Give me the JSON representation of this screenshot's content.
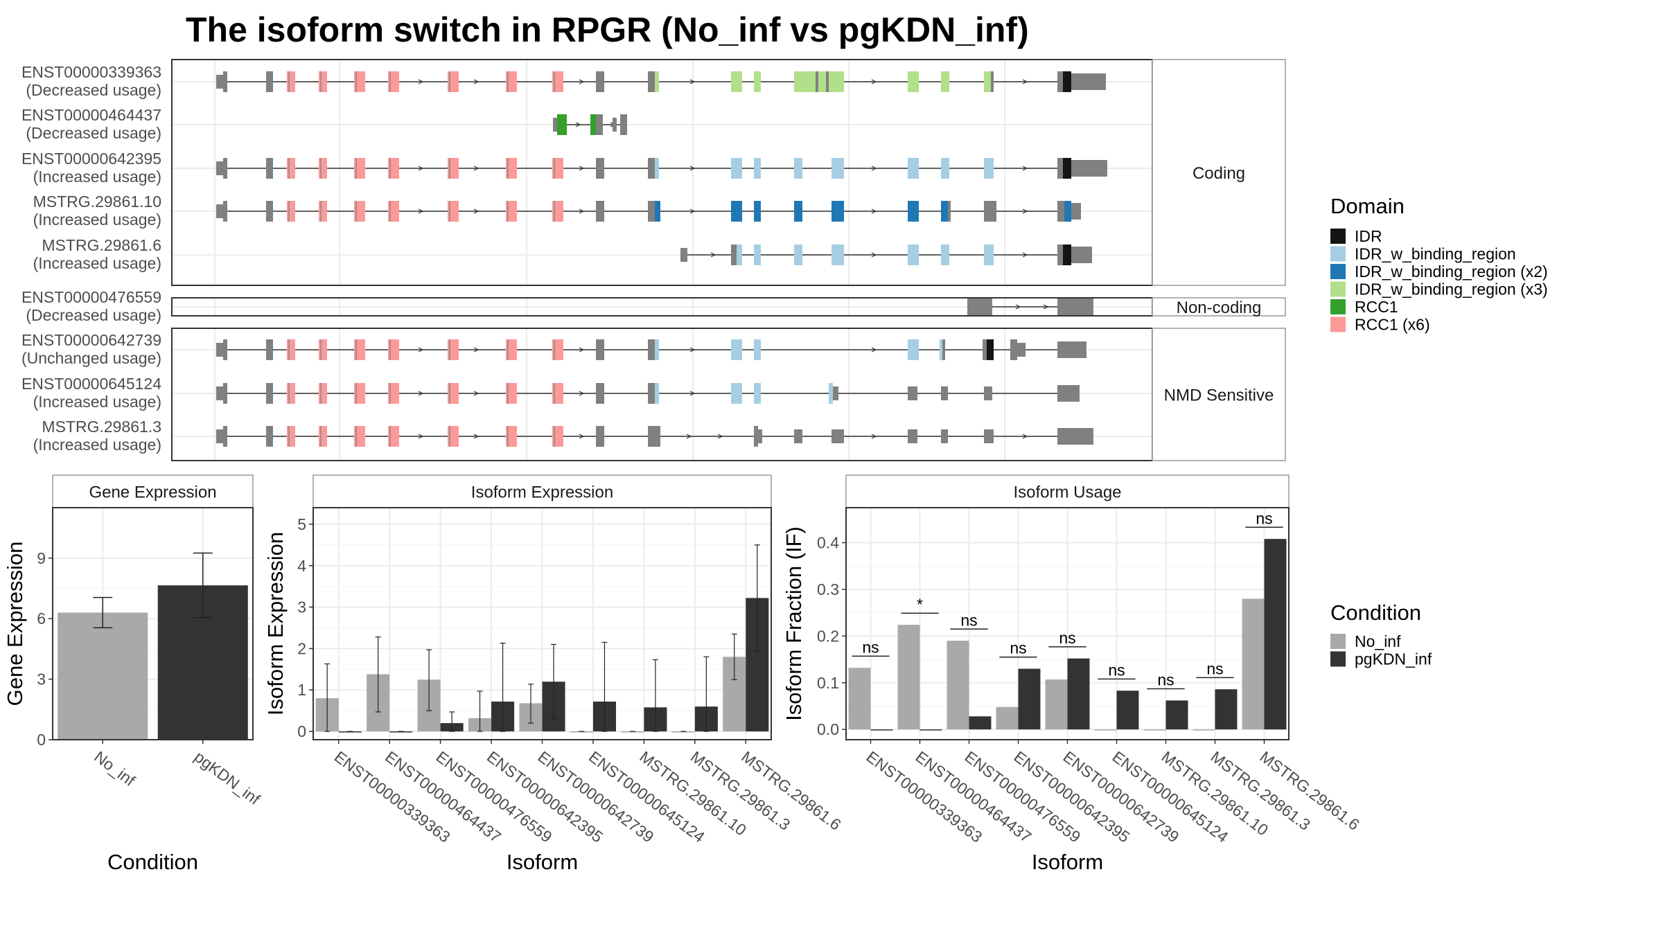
{
  "title": "The isoform switch in RPGR (No_inf vs pgKDN_inf)",
  "colors": {
    "no_inf": "#a9a9a9",
    "pgkdn_inf": "#333333",
    "exon": "#808080",
    "IDR": "#141414",
    "IDR_w_binding_region": "#a6cee3",
    "IDR_w_binding_region (x2)": "#1f78b4",
    "IDR_w_binding_region (x3)": "#b2df8a",
    "RCC1": "#33a02c",
    "RCC1 (x6)": "#fb9a99"
  },
  "structure": {
    "panels": [
      {
        "label": "Coding",
        "isoforms": [
          {
            "id": "ENST00000339363",
            "usage": "(Decreased usage)"
          },
          {
            "id": "ENST00000464437",
            "usage": "(Decreased usage)"
          },
          {
            "id": "ENST00000642395",
            "usage": "(Increased usage)"
          },
          {
            "id": "MSTRG.29861.10",
            "usage": "(Increased usage)"
          },
          {
            "id": "MSTRG.29861.6",
            "usage": "(Increased usage)"
          }
        ]
      },
      {
        "label": "Non-coding",
        "isoforms": [
          {
            "id": "ENST00000476559",
            "usage": "(Decreased usage)"
          }
        ]
      },
      {
        "label": "NMD Sensitive",
        "isoforms": [
          {
            "id": "ENST00000642739",
            "usage": "(Unchanged usage)"
          },
          {
            "id": "ENST00000645124",
            "usage": "(Increased usage)"
          },
          {
            "id": "MSTRG.29861.3",
            "usage": "(Increased usage)"
          }
        ]
      }
    ]
  },
  "legend_domain": {
    "title": "Domain",
    "items": [
      "IDR",
      "IDR_w_binding_region",
      "IDR_w_binding_region (x2)",
      "IDR_w_binding_region (x3)",
      "RCC1",
      "RCC1 (x6)"
    ]
  },
  "legend_condition": {
    "title": "Condition",
    "items": [
      "No_inf",
      "pgKDN_inf"
    ]
  },
  "chart_data": [
    {
      "type": "bar",
      "title": "Gene Expression",
      "xlabel": "Condition",
      "ylabel": "Gene Expression",
      "categories": [
        "No_inf",
        "pgKDN_inf"
      ],
      "values": [
        6.3,
        7.65
      ],
      "error_low": [
        5.55,
        6.05
      ],
      "error_high": [
        7.05,
        9.25
      ],
      "ylim": [
        0,
        11.5
      ],
      "yticks": [
        0,
        3,
        6,
        9
      ]
    },
    {
      "type": "bar",
      "title": "Isoform Expression",
      "xlabel": "Isoform",
      "ylabel": "Isoform Expression",
      "categories": [
        "ENST00000339363",
        "ENST00000464437",
        "ENST00000476559",
        "ENST00000642395",
        "ENST00000642739",
        "ENST00000645124",
        "MSTRG.29861.10",
        "MSTRG.29861.3",
        "MSTRG.29861.6"
      ],
      "series": [
        {
          "name": "No_inf",
          "values": [
            0.8,
            1.38,
            1.25,
            0.32,
            0.68,
            0.0,
            0.0,
            0.0,
            1.8
          ],
          "error_low": [
            0.0,
            0.47,
            0.5,
            0.0,
            0.2,
            0.0,
            0.0,
            0.0,
            1.25
          ],
          "error_high": [
            1.63,
            2.28,
            1.97,
            0.97,
            1.14,
            0.0,
            0.0,
            0.0,
            2.35
          ]
        },
        {
          "name": "pgKDN_inf",
          "values": [
            0.0,
            0.0,
            0.2,
            0.72,
            1.2,
            0.72,
            0.58,
            0.6,
            3.22
          ],
          "error_low": [
            0.0,
            0.0,
            0.0,
            0.0,
            0.3,
            0.0,
            0.0,
            0.0,
            1.93
          ],
          "error_high": [
            0.0,
            0.0,
            0.47,
            2.13,
            2.1,
            2.15,
            1.73,
            1.8,
            4.5
          ]
        }
      ],
      "ylim": [
        -0.2,
        5.4
      ],
      "yticks": [
        0,
        1,
        2,
        3,
        4,
        5
      ]
    },
    {
      "type": "bar",
      "title": "Isoform Usage",
      "xlabel": "Isoform",
      "ylabel": "Isoform Fraction (IF)",
      "categories": [
        "ENST00000339363",
        "ENST00000464437",
        "ENST00000476559",
        "ENST00000642395",
        "ENST00000642739",
        "ENST00000645124",
        "MSTRG.29861.10",
        "MSTRG.29861.3",
        "MSTRG.29861.6"
      ],
      "series": [
        {
          "name": "No_inf",
          "values": [
            0.132,
            0.224,
            0.19,
            0.048,
            0.107,
            0.0,
            0.0,
            0.0,
            0.28
          ]
        },
        {
          "name": "pgKDN_inf",
          "values": [
            0.0,
            0.0,
            0.028,
            0.13,
            0.152,
            0.083,
            0.062,
            0.086,
            0.408
          ]
        }
      ],
      "significance": [
        "ns",
        "*",
        "ns",
        "ns",
        "ns",
        "ns",
        "ns",
        "ns",
        "ns"
      ],
      "ylim": [
        -0.022,
        0.475
      ],
      "yticks": [
        0.0,
        0.1,
        0.2,
        0.3,
        0.4
      ],
      "ytick_labels": [
        "0.0",
        "0.1",
        "0.2",
        "0.3",
        "0.4"
      ]
    }
  ]
}
